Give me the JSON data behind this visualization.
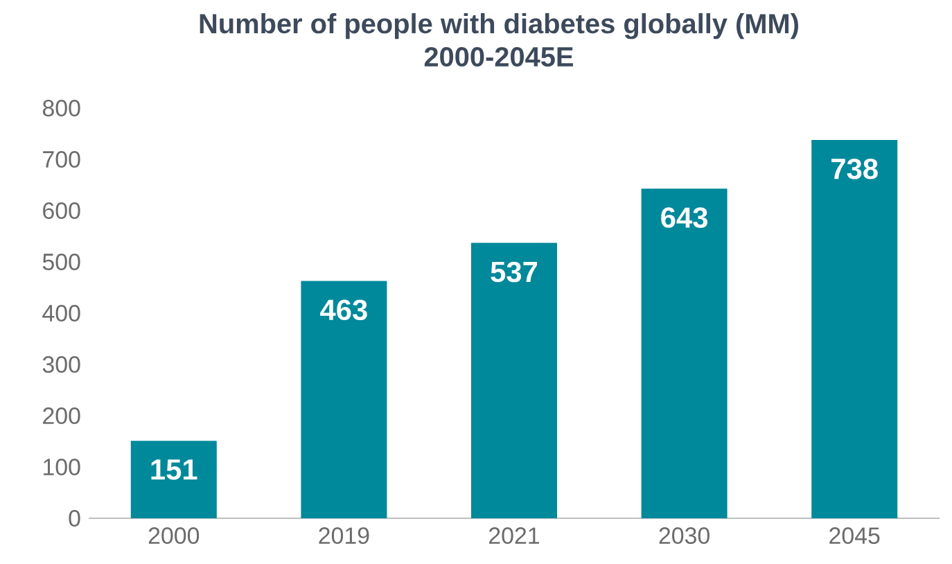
{
  "chart_data": {
    "type": "bar",
    "title": "Number of people with diabetes globally (MM)",
    "subtitle": "2000-2045E",
    "categories": [
      "2000",
      "2019",
      "2021",
      "2030",
      "2045"
    ],
    "values": [
      151,
      463,
      537,
      643,
      738
    ],
    "color": "#00889b",
    "ylim": [
      0,
      800
    ],
    "yticks": [
      0,
      100,
      200,
      300,
      400,
      500,
      600,
      700,
      800
    ],
    "data_labels": true,
    "grid": false
  }
}
